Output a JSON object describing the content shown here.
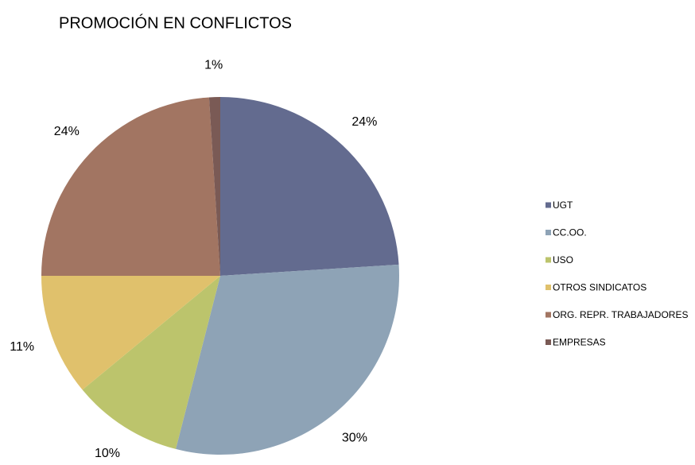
{
  "chart_data": {
    "type": "pie",
    "title": "PROMOCIÓN EN CONFLICTOS",
    "categories": [
      "UGT",
      "CC.OO.",
      "USO",
      "OTROS SINDICATOS",
      "ORG. REPR. TRABAJADORES",
      "EMPRESAS"
    ],
    "values": [
      24,
      30,
      10,
      11,
      24,
      1
    ],
    "value_labels": [
      "24%",
      "30%",
      "10%",
      "11%",
      "24%",
      "1%"
    ],
    "colors": [
      "#636b8f",
      "#8ea3b6",
      "#bcc46c",
      "#e0c16c",
      "#a27562",
      "#7a5a55"
    ],
    "legend": "right"
  }
}
